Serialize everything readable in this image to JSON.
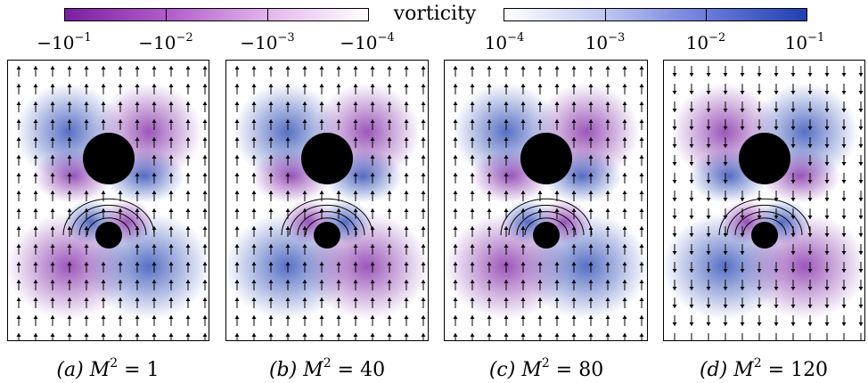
{
  "colorbar": {
    "title": "vorticity",
    "negative_ticks": [
      {
        "base": "−10",
        "exp": "−1"
      },
      {
        "base": "−10",
        "exp": "−2"
      },
      {
        "base": "−10",
        "exp": "−3"
      },
      {
        "base": "−10",
        "exp": "−4"
      }
    ],
    "positive_ticks": [
      {
        "base": "10",
        "exp": "−4"
      },
      {
        "base": "10",
        "exp": "−3"
      },
      {
        "base": "10",
        "exp": "−2"
      },
      {
        "base": "10",
        "exp": "−1"
      }
    ],
    "colors": {
      "negative": "#7a1fa2",
      "positive": "#1f3fb0",
      "zero": "#ffffff"
    }
  },
  "panels": [
    {
      "label": "(a)",
      "symbol": "M",
      "exponent": "2",
      "equals": "= 1"
    },
    {
      "label": "(b)",
      "symbol": "M",
      "exponent": "2",
      "equals": "= 40"
    },
    {
      "label": "(c)",
      "symbol": "M",
      "exponent": "2",
      "equals": "= 80"
    },
    {
      "label": "(d)",
      "symbol": "M",
      "exponent": "2",
      "equals": "= 120"
    }
  ]
}
